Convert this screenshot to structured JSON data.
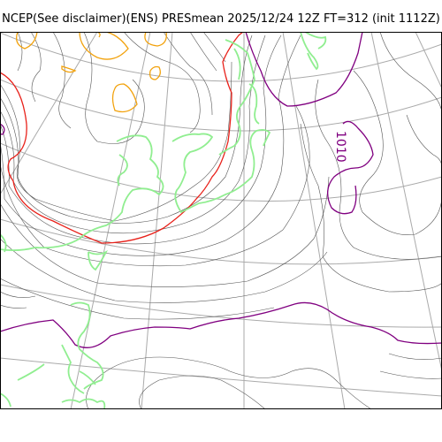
{
  "title": "NCEP(See disclaimer)(ENS) PRESmean 2025/12/24 12Z FT=312 (init 1112Z)",
  "map": {
    "contour_labels": [
      "1010"
    ],
    "colors": {
      "isobar": "#555555",
      "isobar_red": "#e8211a",
      "isobar_purple": "#800080",
      "isobar_orange": "#f2a20d",
      "coastline": "#90ee90",
      "graticule": "#aaaaaa",
      "frame": "#000000"
    }
  }
}
